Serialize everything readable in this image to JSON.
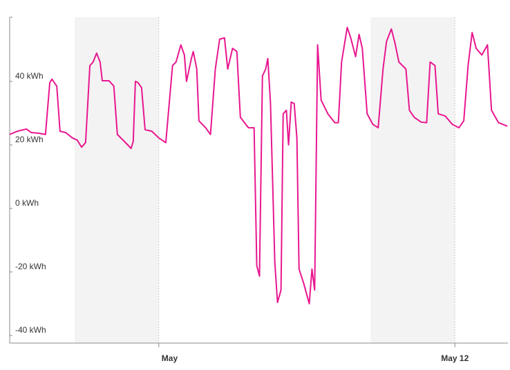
{
  "chart_data": {
    "type": "line",
    "series": [
      {
        "color": "#e8168f",
        "x": [
          -4.54,
          -4.26,
          -3.92,
          -3.74,
          -3.49,
          -3.21,
          -3.05,
          -2.97,
          -2.79,
          -2.67,
          -2.46,
          -2.21,
          -2.03,
          -1.87,
          -1.72,
          -1.56,
          -1.44,
          -1.31,
          -1.18,
          -1.1,
          -0.85,
          -0.67,
          -0.54,
          -0.28,
          -0.03,
          0.05,
          0.13,
          0.23,
          0.36,
          0.49,
          0.74,
          1,
          1.26,
          1.51,
          1.64,
          1.82,
          1.95,
          2.03,
          2.21,
          2.28,
          2.41,
          2.49,
          2.74,
          2.92,
          3.1,
          3.26,
          3.44,
          3.56,
          3.74,
          3.9,
          4.03,
          4.33,
          4.54,
          4.64,
          4.74,
          4.85,
          4.97,
          5.05,
          5.15,
          5.31,
          5.41,
          5.54,
          5.62,
          5.74,
          5.82,
          5.92,
          6.03,
          6.13,
          6.21,
          6.38,
          6.59,
          6.69,
          6.79,
          6.9,
          7.03,
          7.28,
          7.54,
          7.67,
          7.79,
          8,
          8.13,
          8.31,
          8.44,
          8.56,
          8.74,
          8.95,
          9.15,
          9.33,
          9.46,
          9.64,
          9.77,
          9.92,
          10.18,
          10.31,
          10.49,
          10.74,
          10.95,
          11.08,
          11.26,
          11.38,
          11.64,
          11.9,
          12.15,
          12.33,
          12.49,
          12.64,
          12.79,
          13,
          13.21,
          13.36,
          13.62,
          13.95
        ],
        "values": [
          23.3,
          24.3,
          25,
          23.9,
          23.7,
          23.3,
          39.6,
          40.7,
          38.5,
          24.3,
          23.9,
          22.2,
          21.5,
          19.3,
          20.7,
          45,
          46.1,
          48.9,
          46.1,
          40.2,
          40.2,
          38.5,
          23.3,
          21.1,
          18.9,
          21.1,
          40,
          39.6,
          38,
          24.8,
          24.3,
          22.2,
          20.7,
          45,
          46.1,
          51.5,
          48.3,
          40,
          47.2,
          49.4,
          43.9,
          27.6,
          25.4,
          23.3,
          43.9,
          53.3,
          53.7,
          43.9,
          50.4,
          49.4,
          28.7,
          25.4,
          25.4,
          -18,
          -21.3,
          41.7,
          43.9,
          47.2,
          33,
          -17,
          -29.6,
          -25.7,
          29.8,
          30.9,
          20,
          33.5,
          33,
          22.2,
          -19.1,
          -23.5,
          -30,
          -19.1,
          -25.7,
          51.5,
          34.1,
          29.8,
          27,
          27,
          46.1,
          57,
          53.7,
          47.8,
          54.8,
          50.4,
          29.8,
          26.5,
          25.4,
          43.9,
          52.6,
          56.5,
          52.2,
          46.1,
          43.9,
          30.9,
          28.7,
          27.2,
          27,
          46.1,
          45,
          29.8,
          29.1,
          26.5,
          25.4,
          27.6,
          45,
          55.4,
          50.4,
          48.3,
          51.5,
          30.9,
          27,
          25.9
        ]
      }
    ],
    "xlim": [
      -4.54,
      13.97
    ],
    "xticks": [
      {
        "value": 1,
        "label": "May"
      },
      {
        "value": 12,
        "label": "May 12"
      }
    ],
    "ylim": [
      -42.4,
      60.2
    ],
    "yticks": [
      {
        "value": 40,
        "label": "40 kWh"
      },
      {
        "value": 20,
        "label": "20 kWh"
      },
      {
        "value": 0,
        "label": "0 kWh"
      },
      {
        "value": -20,
        "label": "-20 kWh"
      },
      {
        "value": -40,
        "label": "-40 kWh"
      }
    ],
    "bands": [
      [
        -2.13,
        1
      ],
      [
        8.87,
        12
      ]
    ],
    "band_color": "#f3f3f3",
    "grid": true
  }
}
